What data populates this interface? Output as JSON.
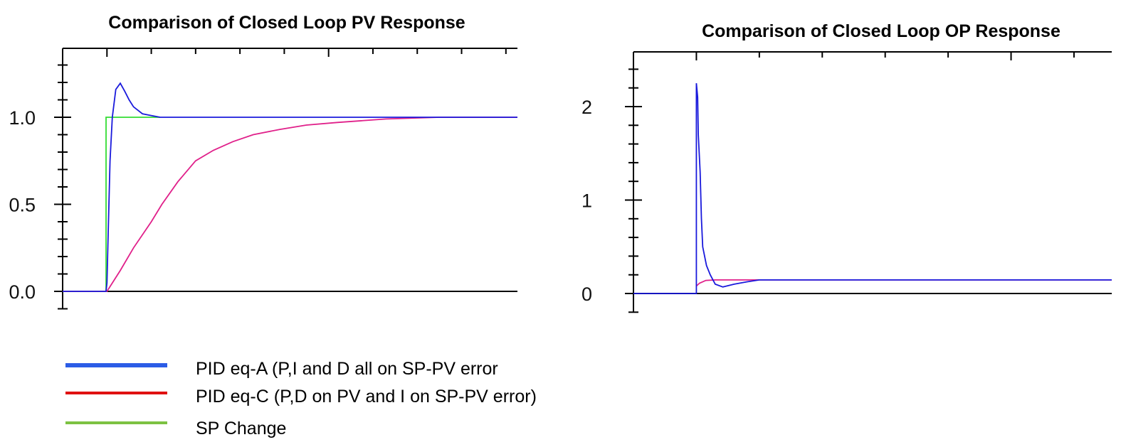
{
  "chart_data": [
    {
      "type": "line",
      "title": "Comparison of Closed Loop PV Response",
      "xlabel": "",
      "ylabel": "",
      "xlim": [
        0,
        10.26
      ],
      "ylim": [
        -0.1,
        1.4
      ],
      "x_major_ticks": [
        1,
        2,
        3,
        4,
        5,
        6,
        7,
        8,
        9,
        10
      ],
      "y_major_ticks": [
        0.0,
        0.5,
        1.0
      ],
      "y_tick_labels": [
        "0.0",
        "0.5",
        "1.0"
      ],
      "y_minor_step": 0.1,
      "grid": false,
      "series": [
        {
          "name": "SP Change",
          "color": "#33dd33",
          "x": [
            0,
            0.98,
            0.98,
            2.2
          ],
          "y": [
            0,
            0,
            1.0,
            1.0
          ]
        },
        {
          "name": "PID eq-C (P,D on PV and I on SP-PV error)",
          "color": "#e0208a",
          "x": [
            0,
            1.0,
            1.3,
            1.6,
            2.0,
            2.24,
            2.6,
            3.0,
            3.4,
            3.84,
            4.3,
            4.9,
            5.5,
            6.2,
            7.3,
            8.5,
            10.26
          ],
          "y": [
            0,
            0,
            0.12,
            0.25,
            0.4,
            0.5,
            0.63,
            0.75,
            0.81,
            0.86,
            0.9,
            0.93,
            0.955,
            0.97,
            0.99,
            1.0,
            1.0
          ]
        },
        {
          "name": "PID eq-A (P,I and D all on SP-PV error",
          "color": "#1a1adc",
          "x": [
            0,
            0.98,
            1.0,
            1.03,
            1.07,
            1.12,
            1.2,
            1.3,
            1.4,
            1.5,
            1.6,
            1.8,
            2.0,
            2.2,
            3.0,
            5.0,
            8.0,
            10.26
          ],
          "y": [
            0,
            0,
            0.05,
            0.35,
            0.75,
            1.0,
            1.16,
            1.195,
            1.15,
            1.1,
            1.06,
            1.02,
            1.01,
            1.0,
            1.0,
            1.0,
            1.0,
            1.0
          ]
        }
      ]
    },
    {
      "type": "line",
      "title": "Comparison of Closed Loop OP Response",
      "xlabel": "",
      "ylabel": "",
      "xlim": [
        0,
        7.6
      ],
      "ylim": [
        -0.2,
        2.59
      ],
      "x_major_ticks": [
        1,
        2,
        3,
        4,
        5,
        6,
        7
      ],
      "y_major_ticks": [
        0,
        1,
        2
      ],
      "y_tick_labels": [
        "0",
        "1",
        "2"
      ],
      "y_minor_step": 0.2,
      "grid": false,
      "series": [
        {
          "name": "PID eq-C (P,D on PV and I on SP-PV error)",
          "color": "#e0208a",
          "x": [
            1.0,
            1.05,
            1.15,
            1.3,
            2.0,
            7.6
          ],
          "y": [
            0.08,
            0.11,
            0.14,
            0.145,
            0.145,
            0.145
          ]
        },
        {
          "name": "PID eq-A (P,I and D all on SP-PV error",
          "color": "#1a1adc",
          "x": [
            0,
            1.0,
            1.0,
            1.02,
            1.03,
            1.06,
            1.08,
            1.1,
            1.16,
            1.22,
            1.3,
            1.42,
            1.6,
            1.8,
            2.0,
            7.6
          ],
          "y": [
            0,
            0,
            2.25,
            2.1,
            1.7,
            1.3,
            0.8,
            0.5,
            0.3,
            0.2,
            0.1,
            0.07,
            0.1,
            0.125,
            0.145,
            0.145
          ]
        }
      ]
    }
  ],
  "legend": {
    "items": [
      {
        "label": "PID eq-A (P,I and D all on SP-PV error",
        "color": "#2b5ce6"
      },
      {
        "label": "PID eq-C (P,D on PV and I on SP-PV error)",
        "color": "#e01010"
      },
      {
        "label": "SP  Change",
        "color": "#7cc242"
      }
    ]
  }
}
